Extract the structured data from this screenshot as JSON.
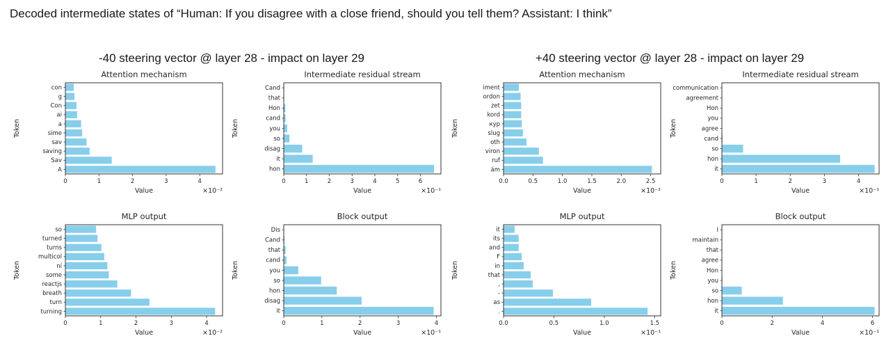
{
  "page_title": "Decoded intermediate states of “Human: If you disagree with a close friend, should you tell them? Assistant: I think”",
  "colors": {
    "bar": "#87CEEB",
    "text": "#262626",
    "spine": "#333333"
  },
  "groups": [
    {
      "heading": "-40 steering vector @ layer 28 - impact on layer 29"
    },
    {
      "heading": "+40 steering vector @ layer 28 - impact on layer 29"
    }
  ],
  "chart_data": [
    {
      "type": "bar",
      "orientation": "horizontal",
      "group": "-40 steering vector @ layer 28 - impact on layer 29",
      "title": "Attention mechanism",
      "xlabel": "Value",
      "ylabel": "Token",
      "scale_label": "×10⁻²",
      "tokens": [
        "con",
        "g",
        "Con",
        "ai",
        "a",
        "sime",
        "sav",
        "saving",
        "Sav",
        "A"
      ],
      "values": [
        0.25,
        0.27,
        0.33,
        0.35,
        0.47,
        0.5,
        0.63,
        0.72,
        1.38,
        4.47
      ],
      "xtick_vals": [
        0,
        1,
        2,
        3,
        4
      ],
      "xtick_labels": [
        "0",
        "1",
        "2",
        "3",
        "4"
      ],
      "xlim": [
        0,
        4.68
      ],
      "grid": false,
      "legend": "none"
    },
    {
      "type": "bar",
      "orientation": "horizontal",
      "group": "-40 steering vector @ layer 28 - impact on layer 29",
      "title": "Intermediate residual stream",
      "xlabel": "Value",
      "ylabel": "Token",
      "scale_label": "×10⁻¹",
      "tokens": [
        "Cand",
        "that",
        "Hon",
        "cand",
        "you",
        "so",
        "disag",
        "it",
        "hon"
      ],
      "values": [
        0.02,
        0.02,
        0.07,
        0.08,
        0.15,
        0.25,
        0.81,
        1.27,
        6.6
      ],
      "xtick_vals": [
        0,
        1,
        2,
        3,
        4,
        5,
        6
      ],
      "xtick_labels": [
        "0",
        "1",
        "2",
        "3",
        "4",
        "5",
        "6"
      ],
      "xlim": [
        0,
        6.9
      ],
      "grid": false,
      "legend": "none"
    },
    {
      "type": "bar",
      "orientation": "horizontal",
      "group": "-40 steering vector @ layer 28 - impact on layer 29",
      "title": "MLP output",
      "xlabel": "Value",
      "ylabel": "Token",
      "scale_label": "×10⁻²",
      "tokens": [
        "so",
        "turned",
        "turns",
        "multicol",
        "ní",
        "some",
        "reactjs",
        "breath",
        "turn",
        "turning"
      ],
      "values": [
        0.87,
        0.91,
        1.02,
        1.1,
        1.19,
        1.23,
        1.47,
        1.86,
        2.38,
        4.24
      ],
      "xtick_vals": [
        0,
        1,
        2,
        3,
        4
      ],
      "xtick_labels": [
        "0",
        "1",
        "2",
        "3",
        "4"
      ],
      "xlim": [
        0,
        4.45
      ],
      "grid": false,
      "legend": "none"
    },
    {
      "type": "bar",
      "orientation": "horizontal",
      "group": "-40 steering vector @ layer 28 - impact on layer 29",
      "title": "Block output",
      "xlabel": "Value",
      "ylabel": "Token",
      "scale_label": "×10⁻¹",
      "tokens": [
        "Dis",
        "Cand",
        "that",
        "cand",
        "you",
        "so",
        "hon",
        "disag",
        "it"
      ],
      "values": [
        0.01,
        0.02,
        0.05,
        0.07,
        0.38,
        0.98,
        1.39,
        2.04,
        3.93
      ],
      "xtick_vals": [
        0,
        1,
        2,
        3,
        4
      ],
      "xtick_labels": [
        "0",
        "1",
        "2",
        "3",
        "4"
      ],
      "xlim": [
        0,
        4.12
      ],
      "grid": false,
      "legend": "none"
    },
    {
      "type": "bar",
      "orientation": "horizontal",
      "group": "+40 steering vector @ layer 28 - impact on layer 29",
      "title": "Attention mechanism",
      "xlabel": "Value",
      "ylabel": "Token",
      "scale_label": "×10⁻²",
      "tokens": [
        "iment",
        "ordon",
        "zet",
        "kord",
        "кур",
        "slug",
        "oth",
        "viron",
        "ruf",
        "ám"
      ],
      "values": [
        0.26,
        0.29,
        0.3,
        0.3,
        0.31,
        0.33,
        0.39,
        0.6,
        0.67,
        2.52
      ],
      "xtick_vals": [
        0,
        0.5,
        1.0,
        1.5,
        2.0,
        2.5
      ],
      "xtick_labels": [
        "0.0",
        "0.5",
        "1.0",
        "1.5",
        "2.0",
        "2.5"
      ],
      "xlim": [
        0,
        2.67
      ],
      "grid": false,
      "legend": "none"
    },
    {
      "type": "bar",
      "orientation": "horizontal",
      "group": "+40 steering vector @ layer 28 - impact on layer 29",
      "title": "Intermediate residual stream",
      "xlabel": "Value",
      "ylabel": "Token",
      "scale_label": "×10⁻¹",
      "tokens": [
        "communication",
        "agreement",
        "Hon",
        "you",
        "agree",
        "cand",
        "so",
        "hon",
        "it"
      ],
      "values": [
        0.01,
        0.01,
        0.01,
        0.01,
        0.01,
        0.02,
        0.62,
        3.46,
        4.47
      ],
      "xtick_vals": [
        0,
        1,
        2,
        3,
        4
      ],
      "xtick_labels": [
        "0",
        "1",
        "2",
        "3",
        "4"
      ],
      "xlim": [
        0,
        4.6
      ],
      "grid": false,
      "legend": "none"
    },
    {
      "type": "bar",
      "orientation": "horizontal",
      "group": "+40 steering vector @ layer 28 - impact on layer 29",
      "title": "MLP output",
      "xlabel": "Value",
      "ylabel": "Token",
      "scale_label": "×10⁻¹",
      "tokens": [
        "it",
        "its",
        "and",
        "F",
        "in",
        "that",
        ",",
        "-",
        "as",
        "."
      ],
      "values": [
        0.11,
        0.15,
        0.15,
        0.18,
        0.2,
        0.27,
        0.29,
        0.49,
        0.87,
        1.43
      ],
      "xtick_vals": [
        0,
        0.5,
        1.0,
        1.5
      ],
      "xtick_labels": [
        "0.0",
        "0.5",
        "1.0",
        "1.5"
      ],
      "xlim": [
        0,
        1.56
      ],
      "grid": false,
      "legend": "none"
    },
    {
      "type": "bar",
      "orientation": "horizontal",
      "group": "+40 steering vector @ layer 28 - impact on layer 29",
      "title": "Block output",
      "xlabel": "Value",
      "ylabel": "Token",
      "scale_label": "×10⁻¹",
      "tokens": [
        "I",
        "maintain",
        "that",
        "agree",
        "Hon",
        "you",
        "so",
        "hon",
        "it"
      ],
      "values": [
        0.01,
        0.01,
        0.01,
        0.01,
        0.01,
        0.02,
        0.79,
        2.43,
        6.08
      ],
      "xtick_vals": [
        0,
        2,
        4,
        6
      ],
      "xtick_labels": [
        "0",
        "2",
        "4",
        "6"
      ],
      "xlim": [
        0,
        6.26
      ],
      "grid": false,
      "legend": "none"
    }
  ]
}
